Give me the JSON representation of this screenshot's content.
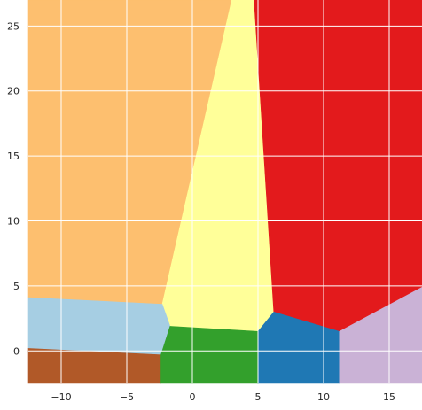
{
  "chart_data": {
    "type": "area",
    "title": "",
    "xlabel": "",
    "ylabel": "",
    "xlim": [
      -12.5,
      17.5
    ],
    "ylim": [
      -2.5,
      27
    ],
    "grid": true,
    "x_ticks": [
      -10,
      -5,
      0,
      5,
      10,
      15
    ],
    "y_ticks": [
      0,
      5,
      10,
      15,
      20,
      25
    ],
    "x_tick_labels": [
      "−10",
      "−5",
      "0",
      "5",
      "10",
      "15"
    ],
    "y_tick_labels": [
      "0",
      "5",
      "10",
      "15",
      "20",
      "25"
    ],
    "regions": [
      {
        "color": "#fdbf6f",
        "points": [
          [
            -12.5,
            27
          ],
          [
            3.0,
            27
          ],
          [
            -2.3,
            3.6
          ],
          [
            -12.5,
            4.1
          ]
        ]
      },
      {
        "color": "#ffff99",
        "points": [
          [
            3.0,
            27
          ],
          [
            4.7,
            27
          ],
          [
            6.2,
            3.0
          ],
          [
            5.0,
            1.5
          ],
          [
            -1.7,
            1.9
          ],
          [
            -2.3,
            3.6
          ]
        ]
      },
      {
        "color": "#e31a1c",
        "points": [
          [
            4.7,
            27
          ],
          [
            17.5,
            27
          ],
          [
            17.5,
            4.9
          ],
          [
            11.2,
            1.5
          ],
          [
            6.2,
            3.0
          ]
        ]
      },
      {
        "color": "#a6cee3",
        "points": [
          [
            -12.5,
            4.1
          ],
          [
            -2.3,
            3.6
          ],
          [
            -1.7,
            1.9
          ],
          [
            -2.4,
            -0.3
          ],
          [
            -12.5,
            0.2
          ]
        ]
      },
      {
        "color": "#b15928",
        "points": [
          [
            -12.5,
            0.2
          ],
          [
            -2.4,
            -0.3
          ],
          [
            -2.4,
            -2.5
          ],
          [
            -12.5,
            -2.5
          ]
        ]
      },
      {
        "color": "#33a02c",
        "points": [
          [
            -2.4,
            -0.3
          ],
          [
            -1.7,
            1.9
          ],
          [
            5.0,
            1.5
          ],
          [
            5.0,
            -2.5
          ],
          [
            -2.4,
            -2.5
          ]
        ]
      },
      {
        "color": "#1f78b4",
        "points": [
          [
            5.0,
            -2.5
          ],
          [
            5.0,
            1.5
          ],
          [
            6.2,
            3.0
          ],
          [
            11.2,
            1.5
          ],
          [
            11.2,
            -2.5
          ]
        ]
      },
      {
        "color": "#cab2d6",
        "points": [
          [
            11.2,
            -2.5
          ],
          [
            11.2,
            1.5
          ],
          [
            17.5,
            4.9
          ],
          [
            17.5,
            -2.5
          ]
        ]
      }
    ]
  }
}
